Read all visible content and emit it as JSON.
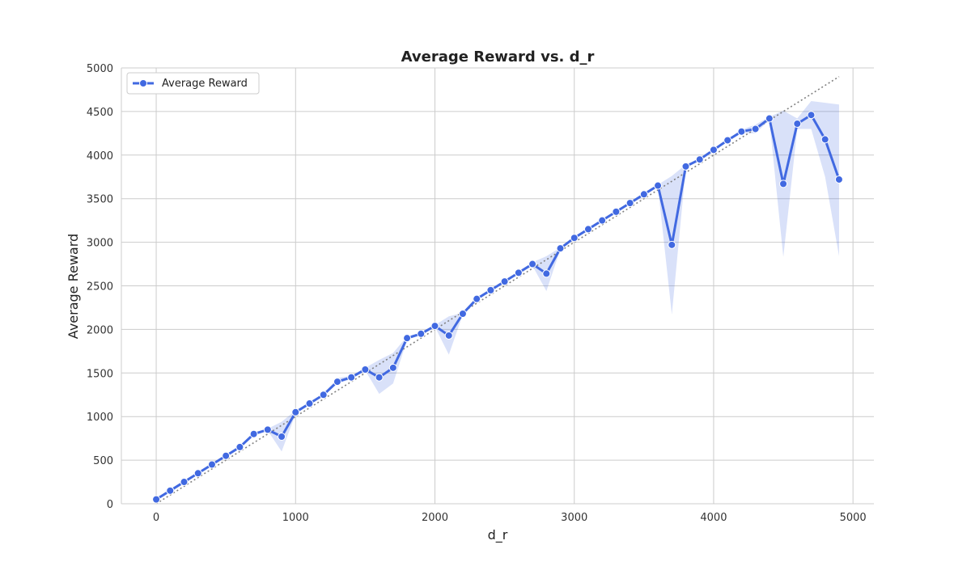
{
  "chart_data": {
    "type": "line",
    "title": "Average Reward vs. d_r",
    "xlabel": "d_r",
    "ylabel": "Average Reward",
    "xlim": [
      -250,
      5150
    ],
    "ylim": [
      0,
      5000
    ],
    "x_ticks": [
      0,
      1000,
      2000,
      3000,
      4000,
      5000
    ],
    "y_ticks": [
      0,
      500,
      1000,
      1500,
      2000,
      2500,
      3000,
      3500,
      4000,
      4500,
      5000
    ],
    "grid": true,
    "legend_position": "top-left",
    "colors": {
      "line": "#4169e1",
      "band": "#4169e1",
      "reference": "#808080",
      "grid": "#cccccc"
    },
    "series": [
      {
        "name": "Average Reward",
        "x": [
          0,
          100,
          200,
          300,
          400,
          500,
          600,
          700,
          800,
          900,
          1000,
          1100,
          1200,
          1300,
          1400,
          1500,
          1600,
          1700,
          1800,
          1900,
          2000,
          2100,
          2200,
          2300,
          2400,
          2500,
          2600,
          2700,
          2800,
          2900,
          3000,
          3100,
          3200,
          3300,
          3400,
          3500,
          3600,
          3700,
          3800,
          3900,
          4000,
          4100,
          4200,
          4300,
          4400,
          4500,
          4600,
          4700,
          4800,
          4900
        ],
        "y": [
          50,
          150,
          250,
          350,
          450,
          550,
          650,
          800,
          850,
          770,
          1050,
          1150,
          1250,
          1400,
          1450,
          1540,
          1450,
          1560,
          1900,
          1950,
          2040,
          1930,
          2180,
          2350,
          2450,
          2550,
          2650,
          2750,
          2640,
          2930,
          3050,
          3150,
          3250,
          3350,
          3450,
          3550,
          3650,
          2970,
          3870,
          3950,
          4060,
          4170,
          4270,
          4300,
          4420,
          3670,
          4360,
          4460,
          4180,
          3720
        ],
        "y_lower": [
          30,
          140,
          240,
          340,
          440,
          540,
          640,
          780,
          840,
          600,
          1030,
          1140,
          1240,
          1380,
          1430,
          1530,
          1260,
          1380,
          1880,
          1940,
          2030,
          1710,
          2170,
          2340,
          2440,
          2540,
          2640,
          2730,
          2440,
          2920,
          3040,
          3140,
          3240,
          3340,
          3440,
          3540,
          3640,
          2170,
          3850,
          3940,
          4050,
          4160,
          4250,
          4250,
          4400,
          2830,
          4300,
          4300,
          3750,
          2840
        ]
      },
      {
        "name": "",
        "role": "reference",
        "x": [
          0,
          4900
        ],
        "y": [
          0,
          4900
        ]
      }
    ],
    "band_upper": [
      70,
      160,
      260,
      360,
      460,
      560,
      660,
      820,
      860,
      940,
      1070,
      1160,
      1260,
      1440,
      1470,
      1560,
      1650,
      1730,
      1920,
      1960,
      2050,
      2150,
      2190,
      2360,
      2460,
      2560,
      2660,
      2770,
      2840,
      2940,
      3060,
      3160,
      3260,
      3360,
      3460,
      3560,
      3660,
      3760,
      3890,
      3960,
      4070,
      4180,
      4290,
      4350,
      4440,
      4510,
      4420,
      4620,
      4600,
      4580
    ]
  }
}
